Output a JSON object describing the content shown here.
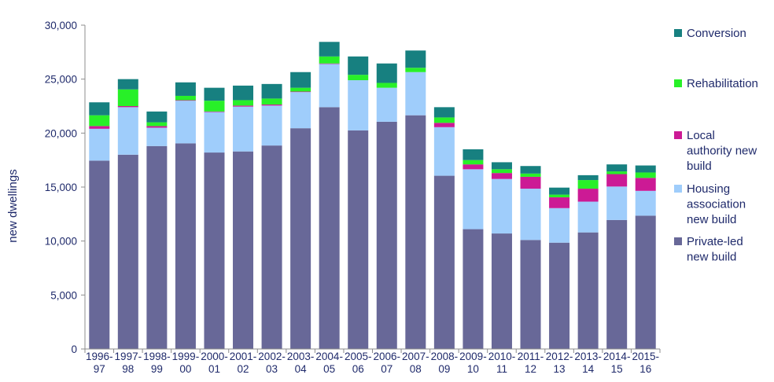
{
  "chart_data": {
    "type": "bar",
    "stacked": true,
    "title": "",
    "ylabel": "new dwellings",
    "xlabel": "",
    "ylim": [
      0,
      30000
    ],
    "yticks": [
      0,
      5000,
      10000,
      15000,
      20000,
      25000,
      30000
    ],
    "ytick_labels": [
      "0",
      "5,000",
      "10,000",
      "15,000",
      "20,000",
      "25,000",
      "30,000"
    ],
    "grid": false,
    "legend_position": "right",
    "categories": [
      [
        "1996-",
        "97"
      ],
      [
        "1997-",
        "98"
      ],
      [
        "1998-",
        "99"
      ],
      [
        "1999-",
        "00"
      ],
      [
        "2000-",
        "01"
      ],
      [
        "2001-",
        "02"
      ],
      [
        "2002-",
        "03"
      ],
      [
        "2003-",
        "04"
      ],
      [
        "2004-",
        "05"
      ],
      [
        "2005-",
        "06"
      ],
      [
        "2006-",
        "07"
      ],
      [
        "2007-",
        "08"
      ],
      [
        "2008-",
        "09"
      ],
      [
        "2009-",
        "10"
      ],
      [
        "2010-",
        "11"
      ],
      [
        "2011-",
        "12"
      ],
      [
        "2012-",
        "13"
      ],
      [
        "2013-",
        "14"
      ],
      [
        "2014-",
        "15"
      ],
      [
        "2015-",
        "16"
      ]
    ],
    "series": [
      {
        "name": "Private-led new build",
        "legend_lines": [
          "Private-led",
          "new build"
        ],
        "color": "#686898",
        "values": [
          17450,
          18000,
          18800,
          19050,
          18200,
          18300,
          18850,
          20450,
          22400,
          20250,
          21050,
          21650,
          16050,
          11100,
          10700,
          10100,
          9850,
          10800,
          11950,
          12350
        ]
      },
      {
        "name": "Housing association new build",
        "legend_lines": [
          "Housing",
          "association",
          "new build"
        ],
        "color": "#9fcdfb",
        "values": [
          2950,
          4400,
          1700,
          3950,
          3750,
          4150,
          3700,
          3350,
          4000,
          4650,
          3150,
          4000,
          4500,
          5550,
          5050,
          4750,
          3200,
          2850,
          3100,
          2300
        ]
      },
      {
        "name": "Local authority new build",
        "legend_lines": [
          "Local",
          "authority new",
          "build"
        ],
        "color": "#cc1a95",
        "values": [
          250,
          100,
          150,
          50,
          50,
          100,
          100,
          50,
          50,
          0,
          0,
          0,
          400,
          450,
          550,
          1100,
          1000,
          1200,
          1150,
          1200
        ]
      },
      {
        "name": "Rehabilitation",
        "legend_lines": [
          "Rehabilitation"
        ],
        "color": "#28f028",
        "values": [
          1000,
          1550,
          350,
          400,
          1000,
          500,
          550,
          350,
          650,
          500,
          450,
          400,
          500,
          400,
          350,
          300,
          250,
          800,
          250,
          500
        ]
      },
      {
        "name": "Conversion",
        "legend_lines": [
          "Conversion"
        ],
        "color": "#178080",
        "values": [
          1200,
          950,
          1000,
          1250,
          1200,
          1350,
          1350,
          1450,
          1350,
          1700,
          1800,
          1600,
          950,
          1000,
          650,
          700,
          650,
          450,
          650,
          650
        ]
      }
    ],
    "legend_order": [
      "Conversion",
      "Rehabilitation",
      "Local authority new build",
      "Housing association new build",
      "Private-led new build"
    ]
  }
}
